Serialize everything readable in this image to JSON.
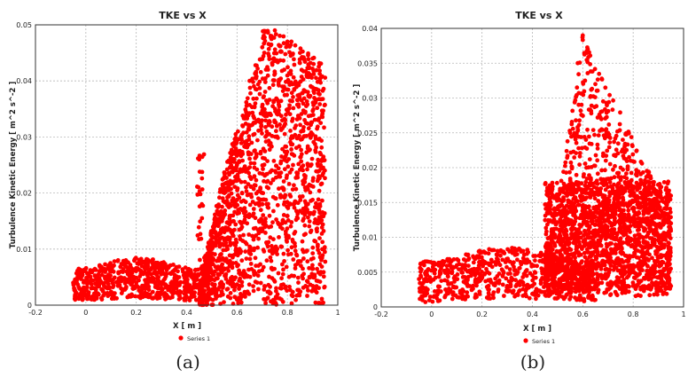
{
  "chart_data": [
    {
      "type": "scatter",
      "title": "TKE vs X",
      "xlabel": "X [ m ]",
      "ylabel": "Turbulence Kinetic Energy [ m^2 s^-2 ]",
      "xlim": [
        -0.2,
        1.0
      ],
      "ylim": [
        0,
        0.05
      ],
      "xticks": [
        "-0.2",
        "0",
        "0.2",
        "0.4",
        "0.6",
        "0.8",
        "1"
      ],
      "yticks": [
        "0",
        "0.01",
        "0.02",
        "0.03",
        "0.04",
        "0.05"
      ],
      "grid": true,
      "legend_position": "bottom",
      "series": [
        {
          "name": "Series 1",
          "color": "#ff0000",
          "regions": [
            {
              "shape": "low-band",
              "x": [
                -0.05,
                0.45
              ],
              "y": [
                0.0,
                0.0075
              ],
              "count": 650
            },
            {
              "shape": "spike",
              "x": [
                0.44,
                0.47
              ],
              "y": [
                0.003,
                0.027
              ],
              "count": 30
            },
            {
              "shape": "main-block",
              "x": [
                0.45,
                0.95
              ],
              "y": [
                0.0,
                0.049
              ],
              "count": 1700
            }
          ],
          "sample_points": [
            [
              -0.05,
              0.004
            ],
            [
              0.0,
              0.003
            ],
            [
              0.1,
              0.006
            ],
            [
              0.2,
              0.004
            ],
            [
              0.3,
              0.002
            ],
            [
              0.45,
              0.026
            ],
            [
              0.46,
              0.018
            ],
            [
              0.5,
              0.01
            ],
            [
              0.55,
              0.02
            ],
            [
              0.6,
              0.025
            ],
            [
              0.65,
              0.04
            ],
            [
              0.7,
              0.046
            ],
            [
              0.75,
              0.049
            ],
            [
              0.8,
              0.047
            ],
            [
              0.85,
              0.045
            ],
            [
              0.9,
              0.044
            ],
            [
              0.93,
              0.043
            ],
            [
              0.9,
              0.005
            ],
            [
              0.7,
              0.015
            ],
            [
              0.6,
              0.001
            ]
          ]
        }
      ]
    },
    {
      "type": "scatter",
      "title": "TKE vs X",
      "xlabel": "X [ m ]",
      "ylabel": "Turbulence Kinetic Energy [ m^2 s^-2 ]",
      "xlim": [
        -0.2,
        1.0
      ],
      "ylim": [
        0,
        0.04
      ],
      "xticks": [
        "-0.2",
        "0",
        "0.2",
        "0.4",
        "0.6",
        "0.8",
        "1"
      ],
      "yticks": [
        "0",
        "0.005",
        "0.01",
        "0.015",
        "0.02",
        "0.025",
        "0.03",
        "0.035",
        "0.04"
      ],
      "grid": true,
      "legend_position": "bottom",
      "series": [
        {
          "name": "Series 1",
          "color": "#ff0000",
          "regions": [
            {
              "shape": "low-band",
              "x": [
                -0.05,
                0.65
              ],
              "y": [
                0.0,
                0.0075
              ],
              "count": 700
            },
            {
              "shape": "peak-triangle",
              "x": [
                0.45,
                0.95
              ],
              "peak_x": 0.6,
              "peak_y": 0.039,
              "right_y": 0.013,
              "count": 1000
            },
            {
              "shape": "dense-block",
              "x": [
                0.45,
                0.95
              ],
              "y": [
                0.0025,
                0.018
              ],
              "count": 1200
            }
          ],
          "sample_points": [
            [
              -0.05,
              0.004
            ],
            [
              0.1,
              0.006
            ],
            [
              0.3,
              0.003
            ],
            [
              0.5,
              0.007
            ],
            [
              0.55,
              0.025
            ],
            [
              0.58,
              0.035
            ],
            [
              0.6,
              0.039
            ],
            [
              0.62,
              0.037
            ],
            [
              0.65,
              0.032
            ],
            [
              0.7,
              0.025
            ],
            [
              0.75,
              0.02
            ],
            [
              0.8,
              0.016
            ],
            [
              0.85,
              0.014
            ],
            [
              0.9,
              0.013
            ],
            [
              0.95,
              0.012
            ],
            [
              0.95,
              0.003
            ],
            [
              0.8,
              0.003
            ],
            [
              0.65,
              0.001
            ]
          ]
        }
      ]
    }
  ],
  "captions": [
    "(a)",
    "(b)"
  ]
}
